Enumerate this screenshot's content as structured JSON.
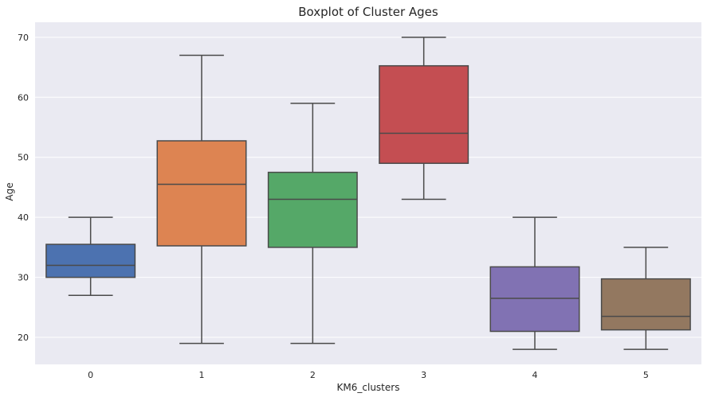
{
  "chart_data": {
    "type": "boxplot",
    "title": "Boxplot of Cluster Ages",
    "xlabel": "KM6_clusters",
    "ylabel": "Age",
    "ylim": [
      15.5,
      72.5
    ],
    "yticks": [
      20,
      30,
      40,
      50,
      60,
      70
    ],
    "grid": true,
    "background": "#eaeaf2",
    "grid_color": "#ffffff",
    "line_color": "#4a4a4a",
    "categories": [
      "0",
      "1",
      "2",
      "3",
      "4",
      "5"
    ],
    "boxes": [
      {
        "category": "0",
        "whisker_low": 27,
        "q1": 30,
        "median": 32,
        "q3": 35.5,
        "whisker_high": 40,
        "color": "#4c72b0"
      },
      {
        "category": "1",
        "whisker_low": 19,
        "q1": 35.25,
        "median": 45.5,
        "q3": 52.75,
        "whisker_high": 67,
        "color": "#dd8452"
      },
      {
        "category": "2",
        "whisker_low": 19,
        "q1": 35,
        "median": 43,
        "q3": 47.5,
        "whisker_high": 59,
        "color": "#55a868"
      },
      {
        "category": "3",
        "whisker_low": 43,
        "q1": 49,
        "median": 54,
        "q3": 65.25,
        "whisker_high": 70,
        "color": "#c44e52"
      },
      {
        "category": "4",
        "whisker_low": 18,
        "q1": 21,
        "median": 26.5,
        "q3": 31.75,
        "whisker_high": 40,
        "color": "#8172b3"
      },
      {
        "category": "5",
        "whisker_low": 18,
        "q1": 21.25,
        "median": 23.5,
        "q3": 29.75,
        "whisker_high": 35,
        "color": "#937860"
      }
    ]
  }
}
